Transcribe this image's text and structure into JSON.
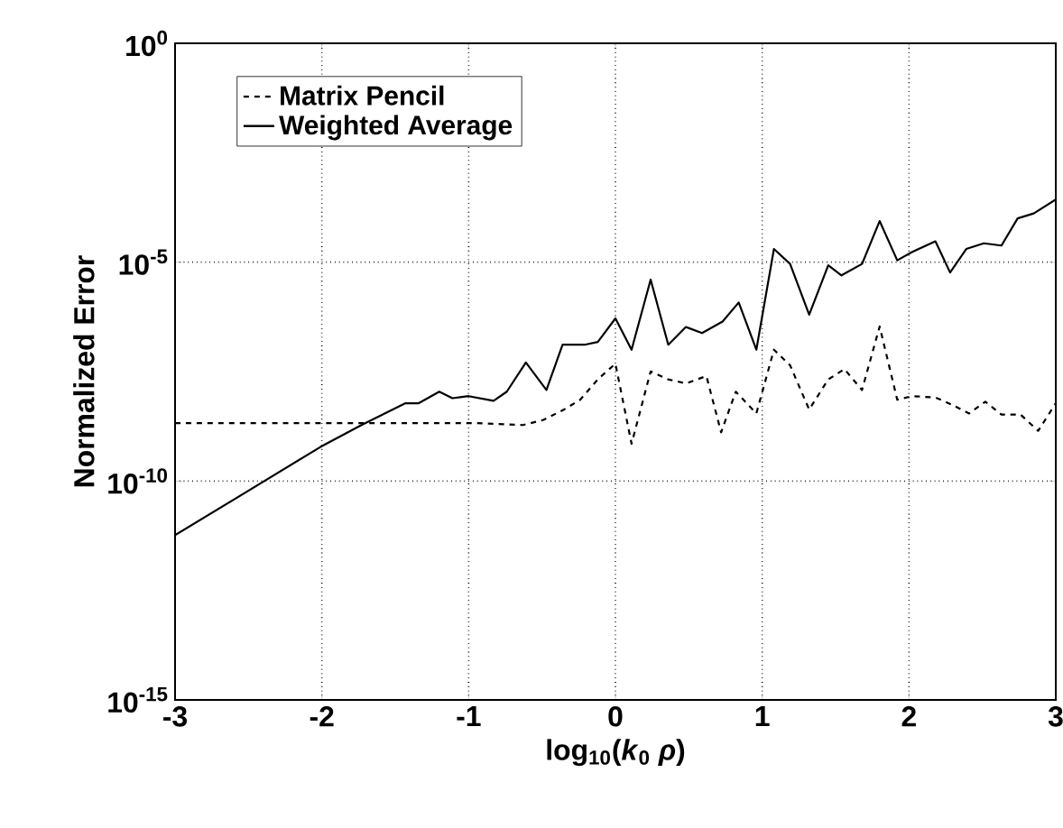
{
  "chart_data": {
    "type": "line",
    "xlabel": "log$_{10}$(*k*$_{0}$ *ρ*)",
    "ylabel": "Normalized Error",
    "log": "y",
    "grid": true,
    "legend": "top left",
    "xlim": [
      -3,
      3
    ],
    "xticks": [
      -3,
      -2,
      -1,
      0,
      1,
      2,
      3
    ],
    "ylim": [
      1e-15,
      1
    ],
    "yticks": [
      {
        "value": 1e-15,
        "label": "10$^{-15}$"
      },
      {
        "value": 1e-10,
        "label": "10$^{-10}$"
      },
      {
        "value": 1e-05,
        "label": "10$^{-5}$"
      },
      {
        "value": 1,
        "label": "10$^{0}$"
      }
    ],
    "series": [
      {
        "name": "Matrix Pencil",
        "color": "#000000",
        "line_style": "dashed",
        "x": [
          -3,
          -0.95,
          -0.63,
          -0.49,
          -0.35,
          -0.24,
          -0.12,
          0.0,
          0.11,
          0.24,
          0.36,
          0.48,
          0.62,
          0.72,
          0.82,
          0.96,
          1.08,
          1.19,
          1.32,
          1.45,
          1.56,
          1.68,
          1.8,
          1.92,
          2.02,
          2.18,
          2.29,
          2.41,
          2.52,
          2.63,
          2.76,
          2.88,
          3.0
        ],
        "values": [
          2.1e-09,
          2.1e-09,
          1.9e-09,
          2.5e-09,
          4.3e-09,
          7.2e-09,
          2.1e-08,
          4.8e-08,
          7.1e-10,
          3.2e-08,
          2.1e-08,
          1.7e-08,
          2.5e-08,
          1.3e-09,
          1.1e-08,
          3.5e-09,
          1e-07,
          4.4e-08,
          4.3e-09,
          2.1e-08,
          3.6e-08,
          1.2e-08,
          3.4e-07,
          7.2e-09,
          8.7e-09,
          8.1e-09,
          5.6e-09,
          3.5e-09,
          6.5e-09,
          3.3e-09,
          3.3e-09,
          1.4e-09,
          6e-09
        ]
      },
      {
        "name": "Weighted Average",
        "color": "#000000",
        "line_style": "solid",
        "x": [
          -3,
          -2.01,
          -1.73,
          -1.43,
          -1.34,
          -1.2,
          -1.11,
          -1.0,
          -0.83,
          -0.74,
          -0.61,
          -0.47,
          -0.36,
          -0.21,
          -0.12,
          0.0,
          0.11,
          0.24,
          0.36,
          0.48,
          0.59,
          0.73,
          0.84,
          0.96,
          1.08,
          1.19,
          1.32,
          1.45,
          1.54,
          1.68,
          1.8,
          1.92,
          2.02,
          2.18,
          2.28,
          2.39,
          2.51,
          2.63,
          2.74,
          2.85,
          3.0
        ],
        "values": [
          5.8e-12,
          6e-10,
          1.9e-09,
          6e-09,
          6e-09,
          1.1e-08,
          7.8e-09,
          8.7e-09,
          6.8e-09,
          1.1e-08,
          5.1e-08,
          1.2e-08,
          1.3e-07,
          1.3e-07,
          1.5e-07,
          5.2e-07,
          1e-07,
          4e-06,
          1.3e-07,
          3.3e-07,
          2.4e-07,
          4.4e-07,
          1.2e-06,
          1e-07,
          2e-05,
          9.1e-06,
          6.3e-07,
          8.5e-06,
          5e-06,
          9.1e-06,
          8.7e-05,
          1.1e-05,
          1.7e-05,
          3e-05,
          5.8e-06,
          2e-05,
          2.7e-05,
          2.4e-05,
          0.0001,
          0.00013,
          0.00027
        ]
      }
    ]
  }
}
